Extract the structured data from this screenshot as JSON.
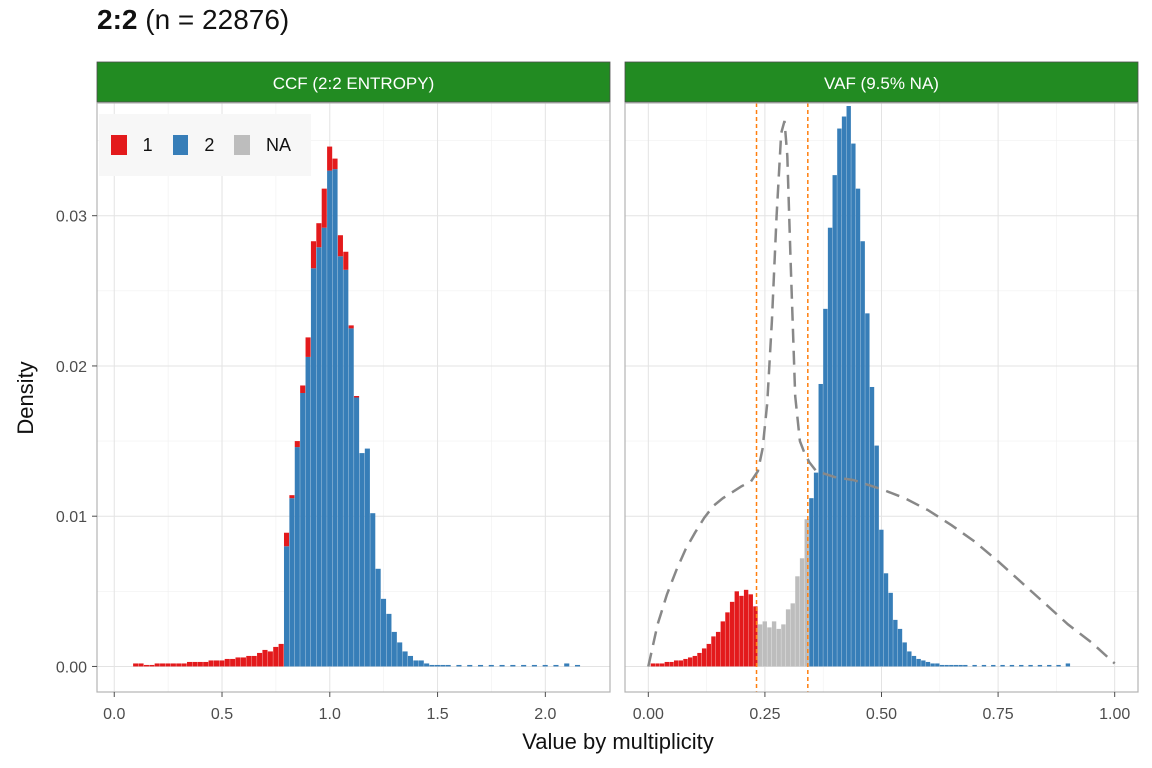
{
  "title": {
    "bold": "2:2",
    "rest": " (n = 22876)"
  },
  "legend": {
    "items": [
      {
        "label": "1",
        "color": "#e31a1c"
      },
      {
        "label": "2",
        "color": "#377eb8"
      },
      {
        "label": "NA",
        "color": "#bdbdbd"
      }
    ]
  },
  "axes": {
    "xlabel": "Value by multiplicity",
    "ylabel": "Density"
  },
  "colors": {
    "strip": "#228b22",
    "vline": "#ff7f0e",
    "curve": "#888888",
    "one": "#e31a1c",
    "two": "#377eb8",
    "na": "#bdbdbd"
  },
  "chart_data": [
    {
      "type": "bar",
      "panel": "CCF (2:2 ENTROPY)",
      "xlim": [
        -0.08,
        2.3
      ],
      "ylim": [
        -0.0017,
        0.0375
      ],
      "xticks": [
        "0.0",
        "0.5",
        "1.0",
        "1.5",
        "2.0"
      ],
      "xtick_values": [
        0,
        0.5,
        1.0,
        1.5,
        2.0
      ],
      "yticks": [
        "0.00",
        "0.01",
        "0.02",
        "0.03"
      ],
      "ytick_values": [
        0,
        0.01,
        0.02,
        0.03
      ],
      "bin_width": 0.025,
      "grid": true,
      "bins": [
        [
          0.1,
          0.0002,
          0
        ],
        [
          0.125,
          0.0002,
          0
        ],
        [
          0.15,
          0.0001,
          0
        ],
        [
          0.175,
          0.0001,
          0
        ],
        [
          0.2,
          0.0002,
          0
        ],
        [
          0.225,
          0.0002,
          0
        ],
        [
          0.25,
          0.0002,
          0
        ],
        [
          0.275,
          0.0002,
          0
        ],
        [
          0.3,
          0.0002,
          0
        ],
        [
          0.325,
          0.0002,
          0
        ],
        [
          0.35,
          0.0003,
          0
        ],
        [
          0.375,
          0.0003,
          0
        ],
        [
          0.4,
          0.0003,
          0
        ],
        [
          0.425,
          0.0003,
          0
        ],
        [
          0.45,
          0.0004,
          0
        ],
        [
          0.475,
          0.0004,
          0
        ],
        [
          0.5,
          0.0004,
          0
        ],
        [
          0.525,
          0.0005,
          0
        ],
        [
          0.55,
          0.0005,
          0
        ],
        [
          0.575,
          0.0006,
          0
        ],
        [
          0.6,
          0.0006,
          0
        ],
        [
          0.625,
          0.0007,
          0
        ],
        [
          0.65,
          0.0007,
          0
        ],
        [
          0.675,
          0.0009,
          0
        ],
        [
          0.7,
          0.0011,
          0
        ],
        [
          0.725,
          0.001,
          0
        ],
        [
          0.75,
          0.0013,
          0
        ],
        [
          0.775,
          0.0015,
          0
        ],
        [
          0.8,
          0.0009,
          0.008
        ],
        [
          0.825,
          0.0002,
          0.0112
        ],
        [
          0.85,
          0.0004,
          0.0146
        ],
        [
          0.875,
          0.0005,
          0.0182
        ],
        [
          0.9,
          0.0013,
          0.0206
        ],
        [
          0.925,
          0.0018,
          0.0265
        ],
        [
          0.95,
          0.0016,
          0.0279
        ],
        [
          0.975,
          0.0026,
          0.0292
        ],
        [
          1.0,
          0.0016,
          0.033
        ],
        [
          1.025,
          0.0007,
          0.0331
        ],
        [
          1.05,
          0.0014,
          0.0273
        ],
        [
          1.075,
          0.0012,
          0.0264
        ],
        [
          1.1,
          0.0002,
          0.0225
        ],
        [
          1.125,
          0.0001,
          0.0179
        ],
        [
          1.15,
          0,
          0.0142
        ],
        [
          1.175,
          0,
          0.0145
        ],
        [
          1.2,
          0,
          0.0102
        ],
        [
          1.225,
          0,
          0.0065
        ],
        [
          1.25,
          0,
          0.0045
        ],
        [
          1.275,
          0,
          0.0035
        ],
        [
          1.3,
          0,
          0.0023
        ],
        [
          1.325,
          0,
          0.0016
        ],
        [
          1.35,
          0,
          0.001
        ],
        [
          1.375,
          0,
          0.0007
        ],
        [
          1.4,
          0,
          0.0004
        ],
        [
          1.425,
          0,
          0.0004
        ],
        [
          1.45,
          0,
          0.0002
        ],
        [
          1.475,
          0,
          0.0001
        ],
        [
          1.5,
          0,
          0.0001
        ],
        [
          1.525,
          0,
          0.0001
        ],
        [
          1.55,
          0,
          0.0001
        ],
        [
          1.6,
          0,
          0.0001
        ],
        [
          1.65,
          0,
          0.0001
        ],
        [
          1.7,
          0,
          0.0001
        ],
        [
          1.75,
          0,
          0.0001
        ],
        [
          1.8,
          0,
          0.0001
        ],
        [
          1.85,
          0,
          0.0001
        ],
        [
          1.9,
          0,
          0.0001
        ],
        [
          1.95,
          0,
          0.0001
        ],
        [
          2.0,
          0,
          0.0001
        ],
        [
          2.05,
          0,
          0.0001
        ],
        [
          2.1,
          0,
          0.0002
        ],
        [
          2.15,
          0,
          0.0001
        ]
      ],
      "bins_columns": [
        "x",
        "density_1",
        "density_2"
      ]
    },
    {
      "type": "bar",
      "panel": "VAF (9.5% NA)",
      "xlim": [
        -0.05,
        1.05
      ],
      "ylim": [
        -0.0017,
        0.0375
      ],
      "xticks": [
        "0.00",
        "0.25",
        "0.50",
        "0.75",
        "1.00"
      ],
      "xtick_values": [
        0,
        0.25,
        0.5,
        0.75,
        1.0
      ],
      "yticks": [
        "0.00",
        "0.01",
        "0.02",
        "0.03"
      ],
      "ytick_values": [
        0,
        0.01,
        0.02,
        0.03
      ],
      "bin_width": 0.01,
      "grid": true,
      "vlines": [
        0.232,
        0.342
      ],
      "bins": [
        [
          0.01,
          0.0002,
          "1"
        ],
        [
          0.02,
          0.0002,
          "1"
        ],
        [
          0.03,
          0.0002,
          "1"
        ],
        [
          0.04,
          0.0003,
          "1"
        ],
        [
          0.05,
          0.0003,
          "1"
        ],
        [
          0.06,
          0.0004,
          "1"
        ],
        [
          0.07,
          0.0004,
          "1"
        ],
        [
          0.08,
          0.0005,
          "1"
        ],
        [
          0.09,
          0.0006,
          "1"
        ],
        [
          0.1,
          0.0007,
          "1"
        ],
        [
          0.11,
          0.0009,
          "1"
        ],
        [
          0.12,
          0.0012,
          "1"
        ],
        [
          0.13,
          0.0015,
          "1"
        ],
        [
          0.14,
          0.002,
          "1"
        ],
        [
          0.15,
          0.0023,
          "1"
        ],
        [
          0.16,
          0.003,
          "1"
        ],
        [
          0.17,
          0.0036,
          "1"
        ],
        [
          0.18,
          0.0043,
          "1"
        ],
        [
          0.19,
          0.005,
          "1"
        ],
        [
          0.2,
          0.0047,
          "1"
        ],
        [
          0.21,
          0.0051,
          "1"
        ],
        [
          0.22,
          0.0048,
          "1"
        ],
        [
          0.23,
          0.004,
          "1"
        ],
        [
          0.24,
          0.0028,
          "NA"
        ],
        [
          0.25,
          0.003,
          "NA"
        ],
        [
          0.26,
          0.0026,
          "NA"
        ],
        [
          0.27,
          0.003,
          "NA"
        ],
        [
          0.28,
          0.0025,
          "NA"
        ],
        [
          0.29,
          0.0028,
          "NA"
        ],
        [
          0.3,
          0.0038,
          "NA"
        ],
        [
          0.31,
          0.0042,
          "NA"
        ],
        [
          0.32,
          0.006,
          "NA"
        ],
        [
          0.33,
          0.0072,
          "NA"
        ],
        [
          0.34,
          0.0098,
          "NA"
        ],
        [
          0.35,
          0.0112,
          "2"
        ],
        [
          0.36,
          0.0129,
          "2"
        ],
        [
          0.37,
          0.0188,
          "2"
        ],
        [
          0.38,
          0.0238,
          "2"
        ],
        [
          0.39,
          0.0292,
          "2"
        ],
        [
          0.4,
          0.0327,
          "2"
        ],
        [
          0.41,
          0.0358,
          "2"
        ],
        [
          0.42,
          0.0366,
          "2"
        ],
        [
          0.43,
          0.0373,
          "2"
        ],
        [
          0.44,
          0.0348,
          "2"
        ],
        [
          0.45,
          0.0318,
          "2"
        ],
        [
          0.46,
          0.0283,
          "2"
        ],
        [
          0.47,
          0.0235,
          "2"
        ],
        [
          0.48,
          0.0186,
          "2"
        ],
        [
          0.49,
          0.0147,
          "2"
        ],
        [
          0.5,
          0.0091,
          "2"
        ],
        [
          0.51,
          0.0062,
          "2"
        ],
        [
          0.52,
          0.0049,
          "2"
        ],
        [
          0.53,
          0.0031,
          "2"
        ],
        [
          0.54,
          0.0025,
          "2"
        ],
        [
          0.55,
          0.0016,
          "2"
        ],
        [
          0.56,
          0.001,
          "2"
        ],
        [
          0.57,
          0.0007,
          "2"
        ],
        [
          0.58,
          0.0005,
          "2"
        ],
        [
          0.59,
          0.0004,
          "2"
        ],
        [
          0.6,
          0.0003,
          "2"
        ],
        [
          0.61,
          0.0002,
          "2"
        ],
        [
          0.62,
          0.0002,
          "2"
        ],
        [
          0.63,
          0.0001,
          "2"
        ],
        [
          0.64,
          0.0001,
          "2"
        ],
        [
          0.65,
          0.0001,
          "2"
        ],
        [
          0.66,
          0.0001,
          "2"
        ],
        [
          0.67,
          0.0001,
          "2"
        ],
        [
          0.68,
          0.0001,
          "2"
        ],
        [
          0.7,
          0.0001,
          "2"
        ],
        [
          0.72,
          0.0001,
          "2"
        ],
        [
          0.74,
          0.0001,
          "2"
        ],
        [
          0.76,
          0.0001,
          "2"
        ],
        [
          0.78,
          0.0001,
          "2"
        ],
        [
          0.8,
          0.0001,
          "2"
        ],
        [
          0.82,
          0.0001,
          "2"
        ],
        [
          0.84,
          0.0001,
          "2"
        ],
        [
          0.86,
          0.0001,
          "2"
        ],
        [
          0.88,
          0.0001,
          "2"
        ],
        [
          0.9,
          0.0002,
          "2"
        ]
      ],
      "bins_columns": [
        "x",
        "density",
        "group"
      ],
      "curve": [
        [
          0.0,
          0.0
        ],
        [
          0.02,
          0.0028
        ],
        [
          0.04,
          0.0048
        ],
        [
          0.06,
          0.0064
        ],
        [
          0.08,
          0.0078
        ],
        [
          0.1,
          0.0089
        ],
        [
          0.12,
          0.0099
        ],
        [
          0.14,
          0.0107
        ],
        [
          0.16,
          0.0112
        ],
        [
          0.18,
          0.0116
        ],
        [
          0.2,
          0.012
        ],
        [
          0.22,
          0.0123
        ],
        [
          0.235,
          0.013
        ],
        [
          0.245,
          0.0145
        ],
        [
          0.255,
          0.0175
        ],
        [
          0.265,
          0.023
        ],
        [
          0.275,
          0.03
        ],
        [
          0.285,
          0.0355
        ],
        [
          0.292,
          0.0363
        ],
        [
          0.298,
          0.034
        ],
        [
          0.305,
          0.027
        ],
        [
          0.315,
          0.018
        ],
        [
          0.325,
          0.015
        ],
        [
          0.335,
          0.0142
        ],
        [
          0.345,
          0.0136
        ],
        [
          0.36,
          0.013
        ],
        [
          0.38,
          0.0128
        ],
        [
          0.4,
          0.0126
        ],
        [
          0.42,
          0.0125
        ],
        [
          0.44,
          0.0124
        ],
        [
          0.46,
          0.0122
        ],
        [
          0.48,
          0.012
        ],
        [
          0.5,
          0.0118
        ],
        [
          0.55,
          0.0112
        ],
        [
          0.6,
          0.0104
        ],
        [
          0.65,
          0.0094
        ],
        [
          0.7,
          0.0083
        ],
        [
          0.75,
          0.007
        ],
        [
          0.8,
          0.0056
        ],
        [
          0.85,
          0.0042
        ],
        [
          0.9,
          0.0028
        ],
        [
          0.95,
          0.0016
        ],
        [
          1.0,
          0.0002
        ]
      ]
    }
  ]
}
